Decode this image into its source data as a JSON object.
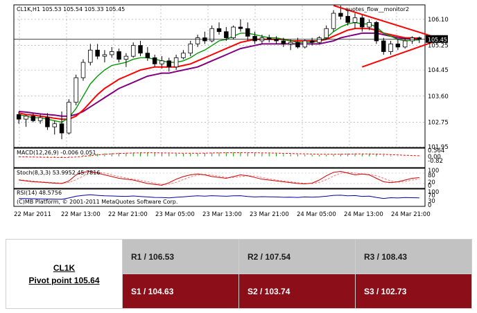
{
  "chart_data": {
    "type": "candlestick",
    "symbol_header": "CL1K,H1  105.53 105.54 105.33 105.45",
    "current_price_label": "105.45",
    "overlay_label": "quotes_flow__monitor2",
    "price_ticks": [
      "106.10",
      "105.25",
      "104.45",
      "103.60",
      "102.75",
      "101.95"
    ],
    "price_tick_values": [
      106.1,
      105.25,
      104.45,
      103.6,
      102.75,
      101.95
    ],
    "ylim": [
      101.95,
      106.55
    ],
    "current_price": 105.45,
    "x_labels": [
      "22 Mar 2011",
      "22 Mar 13:00",
      "22 Mar 21:00",
      "23 Mar 05:00",
      "23 Mar 13:00",
      "23 Mar 21:00",
      "24 Mar 05:00",
      "24 Mar 13:00",
      "24 Mar 21:00"
    ],
    "candles": [
      {
        "o": 103.0,
        "h": 103.1,
        "l": 102.7,
        "c": 102.85
      },
      {
        "o": 102.85,
        "h": 103.0,
        "l": 102.6,
        "c": 102.95
      },
      {
        "o": 102.95,
        "h": 103.05,
        "l": 102.75,
        "c": 102.8
      },
      {
        "o": 102.8,
        "h": 103.0,
        "l": 102.7,
        "c": 102.9
      },
      {
        "o": 102.9,
        "h": 103.05,
        "l": 102.5,
        "c": 102.6
      },
      {
        "o": 102.6,
        "h": 102.8,
        "l": 102.35,
        "c": 102.7
      },
      {
        "o": 102.7,
        "h": 103.1,
        "l": 102.2,
        "c": 102.4
      },
      {
        "o": 102.4,
        "h": 103.5,
        "l": 102.35,
        "c": 103.4
      },
      {
        "o": 103.4,
        "h": 104.3,
        "l": 103.3,
        "c": 104.2
      },
      {
        "o": 104.2,
        "h": 104.8,
        "l": 104.1,
        "c": 104.7
      },
      {
        "o": 104.7,
        "h": 105.3,
        "l": 104.6,
        "c": 105.1
      },
      {
        "o": 105.1,
        "h": 105.3,
        "l": 104.8,
        "c": 104.9
      },
      {
        "o": 104.9,
        "h": 105.1,
        "l": 104.7,
        "c": 104.95
      },
      {
        "o": 104.95,
        "h": 105.2,
        "l": 104.85,
        "c": 105.05
      },
      {
        "o": 105.05,
        "h": 105.15,
        "l": 104.7,
        "c": 104.8
      },
      {
        "o": 104.8,
        "h": 105.0,
        "l": 104.55,
        "c": 104.9
      },
      {
        "o": 104.9,
        "h": 105.35,
        "l": 104.85,
        "c": 105.25
      },
      {
        "o": 105.25,
        "h": 105.4,
        "l": 104.9,
        "c": 105.0
      },
      {
        "o": 105.0,
        "h": 105.2,
        "l": 104.75,
        "c": 104.85
      },
      {
        "o": 104.85,
        "h": 104.95,
        "l": 104.55,
        "c": 104.65
      },
      {
        "o": 104.65,
        "h": 104.9,
        "l": 104.5,
        "c": 104.75
      },
      {
        "o": 104.75,
        "h": 104.85,
        "l": 104.4,
        "c": 104.55
      },
      {
        "o": 104.55,
        "h": 104.95,
        "l": 104.45,
        "c": 104.85
      },
      {
        "o": 104.85,
        "h": 105.1,
        "l": 104.8,
        "c": 105.0
      },
      {
        "o": 105.0,
        "h": 105.4,
        "l": 104.9,
        "c": 105.3
      },
      {
        "o": 105.3,
        "h": 105.6,
        "l": 105.2,
        "c": 105.5
      },
      {
        "o": 105.5,
        "h": 105.7,
        "l": 105.3,
        "c": 105.4
      },
      {
        "o": 105.4,
        "h": 105.9,
        "l": 105.35,
        "c": 105.8
      },
      {
        "o": 105.8,
        "h": 106.0,
        "l": 105.6,
        "c": 105.7
      },
      {
        "o": 105.7,
        "h": 105.85,
        "l": 105.4,
        "c": 105.5
      },
      {
        "o": 105.5,
        "h": 105.9,
        "l": 105.45,
        "c": 105.85
      },
      {
        "o": 105.85,
        "h": 106.1,
        "l": 105.7,
        "c": 105.8
      },
      {
        "o": 105.8,
        "h": 106.0,
        "l": 105.4,
        "c": 105.55
      },
      {
        "o": 105.55,
        "h": 105.7,
        "l": 105.3,
        "c": 105.4
      },
      {
        "o": 105.4,
        "h": 105.6,
        "l": 105.3,
        "c": 105.5
      },
      {
        "o": 105.5,
        "h": 105.6,
        "l": 105.35,
        "c": 105.45
      },
      {
        "o": 105.45,
        "h": 105.55,
        "l": 105.3,
        "c": 105.4
      },
      {
        "o": 105.4,
        "h": 105.5,
        "l": 105.2,
        "c": 105.3
      },
      {
        "o": 105.3,
        "h": 105.45,
        "l": 105.1,
        "c": 105.35
      },
      {
        "o": 105.35,
        "h": 105.5,
        "l": 105.15,
        "c": 105.2
      },
      {
        "o": 105.2,
        "h": 105.45,
        "l": 105.15,
        "c": 105.4
      },
      {
        "o": 105.4,
        "h": 105.5,
        "l": 105.25,
        "c": 105.35
      },
      {
        "o": 105.35,
        "h": 105.55,
        "l": 105.3,
        "c": 105.5
      },
      {
        "o": 105.5,
        "h": 105.9,
        "l": 105.45,
        "c": 105.8
      },
      {
        "o": 105.8,
        "h": 106.4,
        "l": 105.7,
        "c": 106.3
      },
      {
        "o": 106.3,
        "h": 106.55,
        "l": 106.1,
        "c": 106.2
      },
      {
        "o": 106.2,
        "h": 106.4,
        "l": 105.9,
        "c": 106.0
      },
      {
        "o": 106.0,
        "h": 106.3,
        "l": 105.8,
        "c": 106.15
      },
      {
        "o": 106.15,
        "h": 106.25,
        "l": 105.7,
        "c": 105.85
      },
      {
        "o": 105.85,
        "h": 106.1,
        "l": 105.75,
        "c": 106.0
      },
      {
        "o": 106.0,
        "h": 106.05,
        "l": 105.3,
        "c": 105.4
      },
      {
        "o": 105.4,
        "h": 105.5,
        "l": 104.95,
        "c": 105.05
      },
      {
        "o": 105.05,
        "h": 105.4,
        "l": 104.95,
        "c": 105.3
      },
      {
        "o": 105.3,
        "h": 105.45,
        "l": 105.1,
        "c": 105.2
      },
      {
        "o": 105.2,
        "h": 105.5,
        "l": 105.15,
        "c": 105.4
      },
      {
        "o": 105.4,
        "h": 105.55,
        "l": 105.3,
        "c": 105.5
      },
      {
        "o": 105.5,
        "h": 105.54,
        "l": 105.33,
        "c": 105.45
      }
    ],
    "ma_fast": [
      103.0,
      102.95,
      102.9,
      102.9,
      102.85,
      102.8,
      102.75,
      102.9,
      103.2,
      103.6,
      104.0,
      104.25,
      104.45,
      104.6,
      104.65,
      104.7,
      104.8,
      104.85,
      104.85,
      104.8,
      104.75,
      104.7,
      104.7,
      104.75,
      104.85,
      105.0,
      105.1,
      105.25,
      105.4,
      105.45,
      105.55,
      105.65,
      105.65,
      105.6,
      105.55,
      105.5,
      105.5,
      105.45,
      105.4,
      105.35,
      105.35,
      105.35,
      105.4,
      105.5,
      105.7,
      105.85,
      105.95,
      106.0,
      105.95,
      105.95,
      105.85,
      105.65,
      105.55,
      105.45,
      105.4,
      105.42,
      105.43
    ],
    "ma_mid": [
      103.05,
      103.0,
      102.98,
      102.95,
      102.92,
      102.88,
      102.85,
      102.85,
      102.95,
      103.15,
      103.4,
      103.65,
      103.85,
      104.0,
      104.15,
      104.25,
      104.35,
      104.45,
      104.5,
      104.55,
      104.55,
      104.55,
      104.55,
      104.6,
      104.65,
      104.75,
      104.85,
      104.95,
      105.05,
      105.15,
      105.25,
      105.35,
      105.4,
      105.45,
      105.45,
      105.45,
      105.45,
      105.45,
      105.4,
      105.4,
      105.4,
      105.4,
      105.4,
      105.45,
      105.55,
      105.65,
      105.75,
      105.8,
      105.8,
      105.8,
      105.75,
      105.65,
      105.6,
      105.55,
      105.5,
      105.5,
      105.48
    ],
    "ma_slow": [
      103.1,
      103.08,
      103.05,
      103.02,
      103.0,
      102.98,
      102.95,
      102.95,
      103.0,
      103.1,
      103.25,
      103.4,
      103.55,
      103.7,
      103.85,
      103.95,
      104.05,
      104.15,
      104.25,
      104.3,
      104.35,
      104.35,
      104.4,
      104.45,
      104.5,
      104.55,
      104.65,
      104.75,
      104.85,
      104.95,
      105.05,
      105.15,
      105.2,
      105.25,
      105.3,
      105.3,
      105.3,
      105.3,
      105.3,
      105.3,
      105.3,
      105.3,
      105.3,
      105.35,
      105.4,
      105.5,
      105.55,
      105.6,
      105.65,
      105.65,
      105.65,
      105.6,
      105.55,
      105.5,
      105.48,
      105.47,
      105.46
    ],
    "trendline_upper": [
      {
        "i": 44,
        "v": 106.55
      },
      {
        "i": 57,
        "v": 105.55
      }
    ],
    "trendline_lower": [
      {
        "i": 48,
        "v": 104.55
      },
      {
        "i": 57,
        "v": 105.35
      }
    ],
    "macd": {
      "label": "MACD(12,26,9) -0.006 0.051",
      "ticks": [
        "0.564",
        "0.00",
        "-0.82"
      ],
      "ylim": [
        -0.82,
        0.564
      ],
      "hist": [
        -0.05,
        -0.06,
        -0.07,
        -0.08,
        -0.09,
        -0.1,
        -0.12,
        -0.08,
        0.02,
        0.1,
        0.18,
        0.22,
        0.26,
        0.28,
        0.3,
        0.3,
        0.32,
        0.32,
        0.3,
        0.28,
        0.26,
        0.24,
        0.22,
        0.22,
        0.24,
        0.26,
        0.28,
        0.3,
        0.32,
        0.32,
        0.32,
        0.32,
        0.3,
        0.28,
        0.26,
        0.24,
        0.22,
        0.2,
        0.18,
        0.16,
        0.14,
        0.12,
        0.12,
        0.14,
        0.18,
        0.22,
        0.24,
        0.24,
        0.22,
        0.2,
        0.16,
        0.1,
        0.06,
        0.03,
        0.01,
        0.0,
        -0.006
      ],
      "signal": [
        -0.04,
        -0.05,
        -0.06,
        -0.07,
        -0.08,
        -0.09,
        -0.1,
        -0.09,
        -0.06,
        0.0,
        0.06,
        0.12,
        0.17,
        0.21,
        0.24,
        0.26,
        0.28,
        0.29,
        0.3,
        0.3,
        0.29,
        0.28,
        0.27,
        0.26,
        0.26,
        0.26,
        0.27,
        0.28,
        0.29,
        0.3,
        0.3,
        0.31,
        0.31,
        0.3,
        0.29,
        0.28,
        0.27,
        0.25,
        0.24,
        0.22,
        0.21,
        0.19,
        0.18,
        0.17,
        0.17,
        0.18,
        0.19,
        0.2,
        0.2,
        0.2,
        0.19,
        0.17,
        0.14,
        0.12,
        0.09,
        0.07,
        0.051
      ]
    },
    "stoch": {
      "label": "Stoch(8,3,3) 53.9952 45.7816",
      "ticks": [
        "100",
        "80",
        "20",
        "0"
      ],
      "ylim": [
        0,
        100
      ],
      "main": [
        40,
        35,
        30,
        28,
        25,
        22,
        20,
        35,
        70,
        85,
        90,
        80,
        70,
        60,
        50,
        45,
        40,
        30,
        20,
        15,
        10,
        25,
        45,
        60,
        70,
        75,
        70,
        60,
        55,
        50,
        60,
        70,
        65,
        55,
        45,
        40,
        35,
        30,
        25,
        20,
        18,
        22,
        40,
        65,
        85,
        90,
        80,
        70,
        75,
        70,
        50,
        30,
        25,
        30,
        40,
        50,
        53.9952
      ],
      "signal": [
        42,
        38,
        34,
        30,
        27,
        25,
        22,
        26,
        42,
        63,
        80,
        85,
        80,
        70,
        60,
        52,
        45,
        38,
        30,
        22,
        15,
        17,
        27,
        43,
        58,
        68,
        72,
        68,
        62,
        55,
        55,
        60,
        65,
        63,
        55,
        47,
        40,
        35,
        30,
        25,
        21,
        20,
        27,
        42,
        63,
        80,
        85,
        80,
        75,
        72,
        65,
        50,
        35,
        28,
        32,
        40,
        45.7816
      ]
    },
    "rsi": {
      "label": "RSI(14) 48.5756",
      "ticks": [
        "100",
        "70",
        "30",
        "0"
      ],
      "ylim": [
        0,
        100
      ],
      "values": [
        45,
        44,
        43,
        42,
        41,
        40,
        39,
        48,
        60,
        66,
        70,
        66,
        63,
        62,
        60,
        59,
        62,
        58,
        55,
        52,
        51,
        49,
        53,
        56,
        60,
        63,
        61,
        64,
        62,
        60,
        63,
        64,
        58,
        55,
        57,
        56,
        55,
        53,
        54,
        52,
        55,
        54,
        56,
        60,
        66,
        67,
        63,
        65,
        59,
        61,
        52,
        45,
        50,
        48,
        51,
        50,
        48.5756
      ]
    },
    "copyright": "(C)MB Platform, © 2001-2011 MetaQuotes Software Corp."
  },
  "pivot_table": {
    "symbol": "CL1K",
    "pivot_label": "Pivot point 105.64",
    "r1": "R1 / 106.53",
    "r2": "R2 / 107.54",
    "r3": "R3 / 108.43",
    "s1": "S1 / 104.63",
    "s2": "S2 /  103.74",
    "s3": "S3 /  102.73"
  },
  "colors": {
    "candle_up": "#ffffff",
    "candle_down": "#000000",
    "ma_fast": "#009900",
    "ma_mid": "#ff0000",
    "ma_slow": "#800080",
    "trendline": "#ff0000",
    "macd_hist": "#00aa00",
    "macd_signal": "#ff0000",
    "stoch_main": "#c80000",
    "stoch_signal": "#ff7070",
    "rsi": "#0000a0",
    "resistance_row": "#c2c2c2",
    "support_row": "#8c0e19"
  }
}
